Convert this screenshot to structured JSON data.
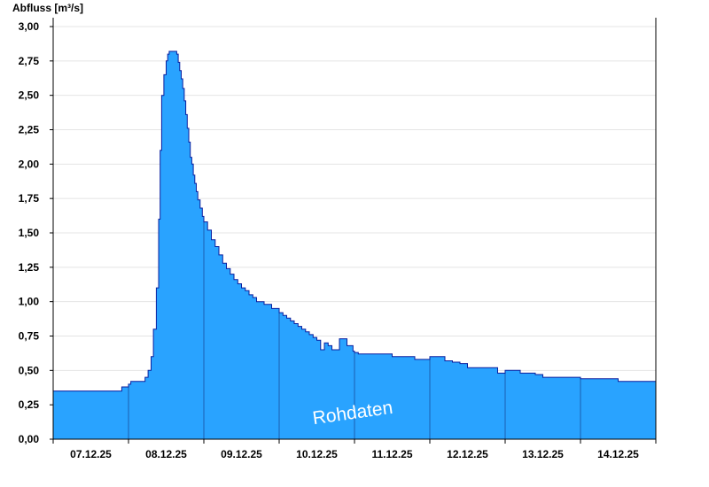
{
  "chart_data": {
    "type": "area",
    "ylabel": "Abfluss [m³/s]",
    "xlabel": "",
    "ylim": [
      0,
      3.0
    ],
    "yticks": [
      "0,00",
      "0,25",
      "0,50",
      "0,75",
      "1,00",
      "1,25",
      "1,50",
      "1,75",
      "2,00",
      "2,25",
      "2,50",
      "2,75",
      "3,00"
    ],
    "ytick_values": [
      0,
      0.25,
      0.5,
      0.75,
      1.0,
      1.25,
      1.5,
      1.75,
      2.0,
      2.25,
      2.5,
      2.75,
      3.0
    ],
    "xlim_days": [
      "06.12.25",
      "14.12.25 ~ end"
    ],
    "xticks": [
      "07.12.25",
      "08.12.25",
      "09.12.25",
      "10.12.25",
      "11.12.25",
      "12.12.25",
      "13.12.25",
      "14.12.25"
    ],
    "grid": true,
    "fill_color": "#29a3ff",
    "line_color": "#0a1f9e",
    "watermark": "Rohdaten",
    "series": [
      {
        "x": [
          0.0,
          0.9,
          0.91,
          0.99,
          1.0,
          1.03,
          1.2,
          1.22,
          1.26,
          1.3,
          1.33,
          1.37,
          1.4,
          1.42,
          1.44,
          1.47,
          1.5,
          1.52,
          1.54,
          1.56,
          1.58,
          1.6,
          1.62,
          1.64,
          1.66,
          1.68,
          1.7,
          1.72,
          1.74,
          1.76,
          1.78,
          1.8,
          1.82,
          1.84,
          1.86,
          1.88,
          1.9,
          1.92,
          1.95,
          1.98,
          2.0,
          2.05,
          2.1,
          2.15,
          2.2,
          2.25,
          2.3,
          2.35,
          2.4,
          2.45,
          2.5,
          2.55,
          2.6,
          2.65,
          2.7,
          2.8,
          2.9,
          3.0,
          3.05,
          3.1,
          3.15,
          3.2,
          3.25,
          3.3,
          3.35,
          3.4,
          3.45,
          3.5,
          3.55,
          3.6,
          3.65,
          3.7,
          3.8,
          3.9,
          3.98,
          4.0,
          4.05,
          4.1,
          4.2,
          4.3,
          4.5,
          4.8,
          5.0,
          5.2,
          5.3,
          5.4,
          5.5,
          5.7,
          5.8,
          5.9,
          6.0,
          6.2,
          6.3,
          6.4,
          6.5,
          6.6,
          6.7,
          6.8,
          7.0,
          7.4,
          7.5,
          8.0
        ],
        "y": [
          0.35,
          0.35,
          0.38,
          0.38,
          0.4,
          0.42,
          0.42,
          0.45,
          0.5,
          0.6,
          0.8,
          1.1,
          1.6,
          2.1,
          2.5,
          2.65,
          2.75,
          2.8,
          2.82,
          2.82,
          2.82,
          2.82,
          2.82,
          2.8,
          2.74,
          2.68,
          2.62,
          2.55,
          2.46,
          2.36,
          2.26,
          2.16,
          2.05,
          2.0,
          1.92,
          1.86,
          1.8,
          1.74,
          1.68,
          1.62,
          1.58,
          1.52,
          1.45,
          1.4,
          1.34,
          1.28,
          1.24,
          1.2,
          1.16,
          1.13,
          1.1,
          1.08,
          1.05,
          1.03,
          1.0,
          0.98,
          0.95,
          0.92,
          0.9,
          0.88,
          0.86,
          0.84,
          0.82,
          0.8,
          0.78,
          0.76,
          0.74,
          0.72,
          0.65,
          0.7,
          0.68,
          0.65,
          0.73,
          0.68,
          0.64,
          0.63,
          0.62,
          0.62,
          0.62,
          0.62,
          0.6,
          0.58,
          0.6,
          0.57,
          0.56,
          0.55,
          0.52,
          0.52,
          0.52,
          0.48,
          0.5,
          0.48,
          0.48,
          0.47,
          0.45,
          0.45,
          0.45,
          0.45,
          0.44,
          0.44,
          0.42,
          0.42
        ]
      }
    ]
  }
}
